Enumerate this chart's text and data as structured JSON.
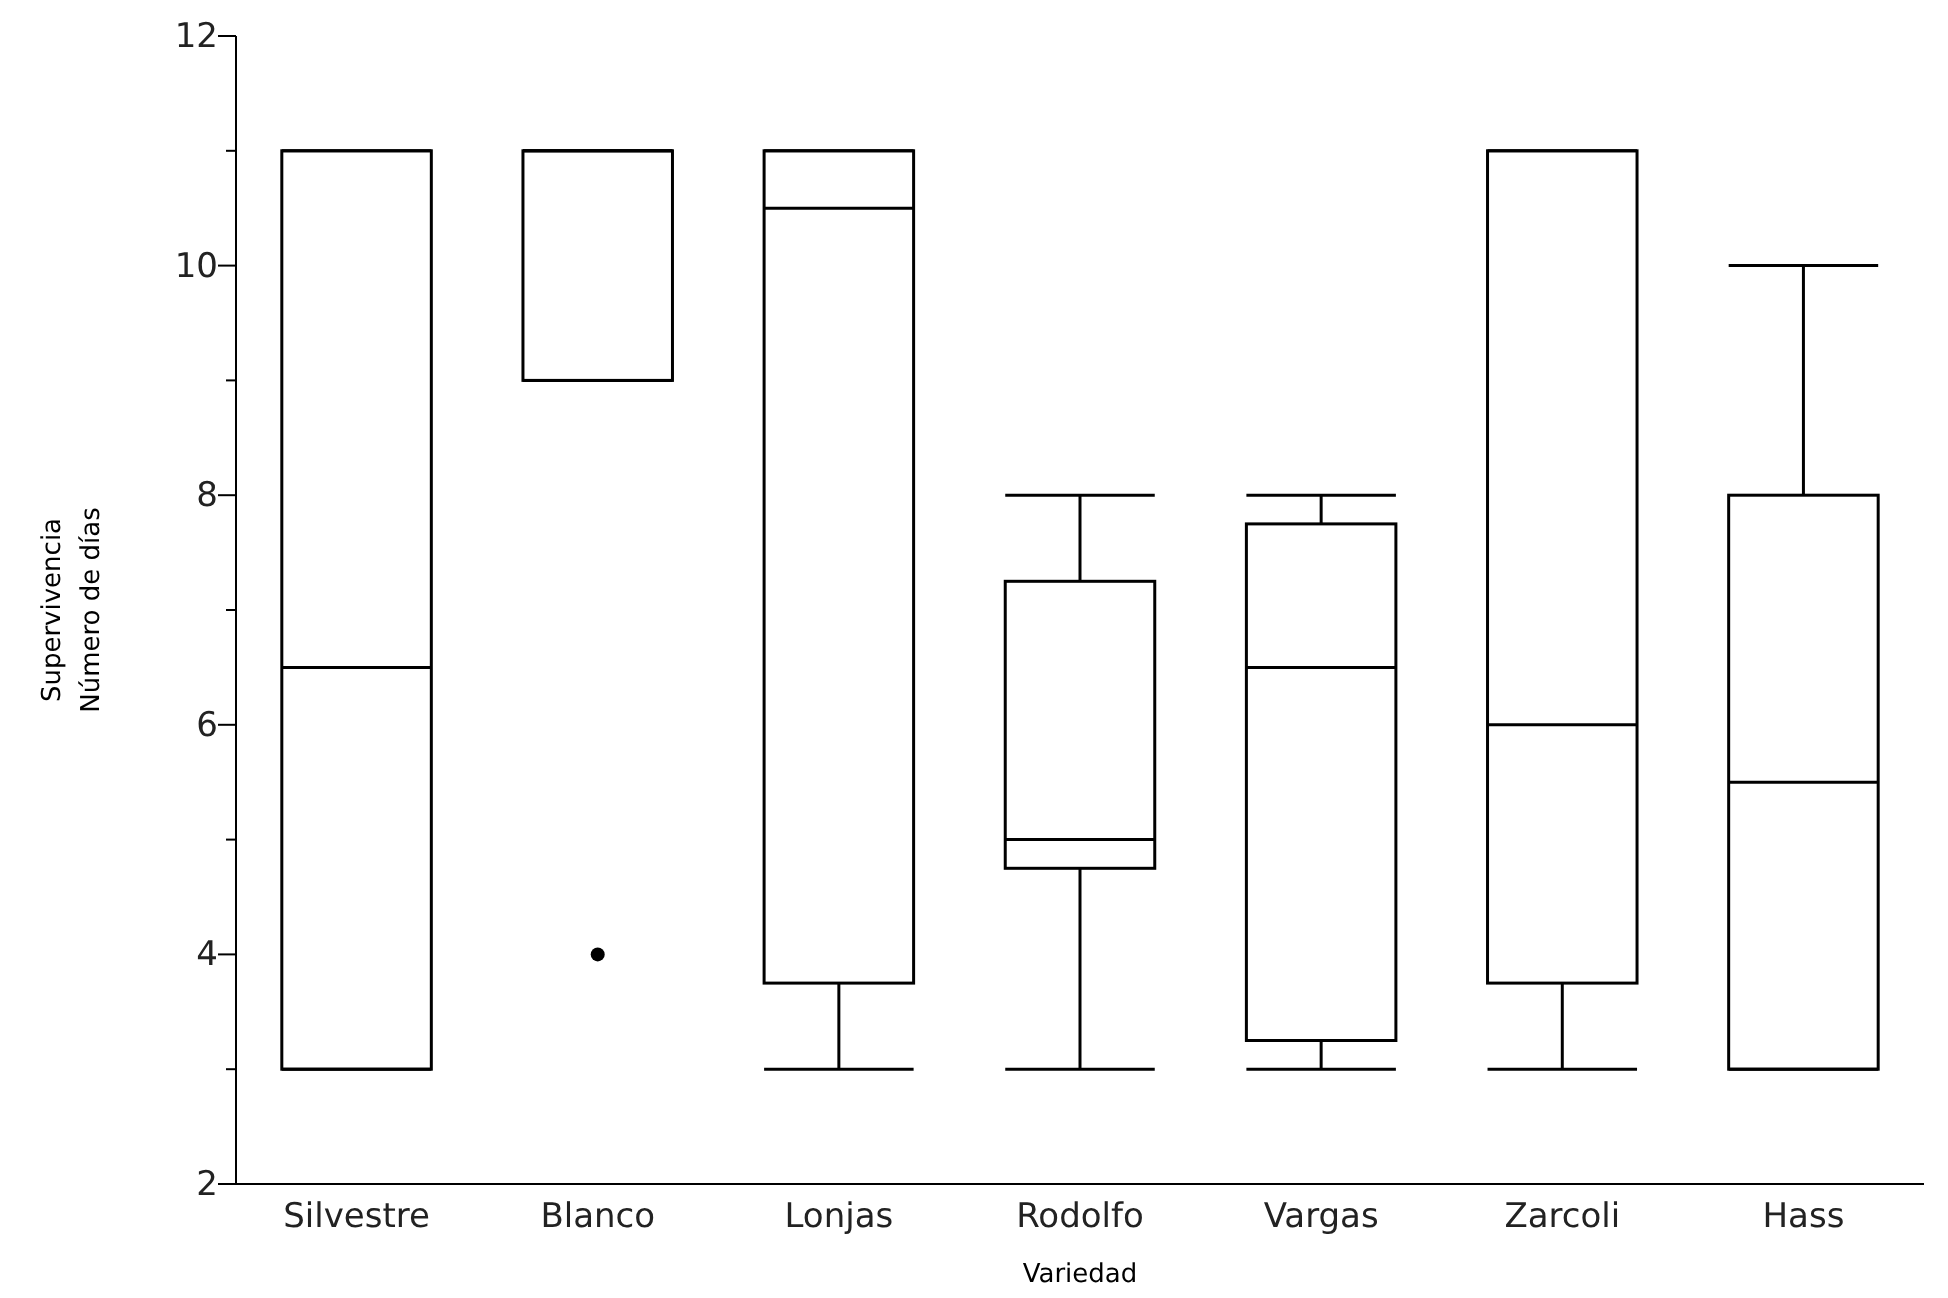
{
  "chart_data": {
    "type": "box",
    "xlabel": "Variedad",
    "ylabel": "Supervivencia\nNúmero de días",
    "categories": [
      "Silvestre",
      "Blanco",
      "Lonjas",
      "Rodolfo",
      "Vargas",
      "Zarcoli",
      "Hass"
    ],
    "boxes": [
      {
        "low": 3,
        "q1": 3,
        "median": 6.5,
        "q3": 11,
        "high": 11
      },
      {
        "low": 9,
        "q1": 9,
        "median": 11,
        "q3": 11,
        "high": 11,
        "outliers": [
          4
        ]
      },
      {
        "low": 3,
        "q1": 3.75,
        "median": 10.5,
        "q3": 11,
        "high": 11
      },
      {
        "low": 3,
        "q1": 4.75,
        "median": 5,
        "q3": 7.25,
        "high": 8
      },
      {
        "low": 3,
        "q1": 3.25,
        "median": 6.5,
        "q3": 7.75,
        "high": 8
      },
      {
        "low": 3,
        "q1": 3.75,
        "median": 6,
        "q3": 11,
        "high": 11
      },
      {
        "low": 3,
        "q1": 3,
        "median": 5.5,
        "q3": 8,
        "high": 10
      }
    ],
    "ylim": [
      2,
      12
    ],
    "yticks": [
      2,
      {
        "value": 3,
        "label": null
      },
      4,
      {
        "value": 5,
        "label": null
      },
      6,
      {
        "value": 7,
        "label": null
      },
      8,
      {
        "value": 9,
        "label": null
      },
      10,
      {
        "value": 11,
        "label": null
      },
      12
    ],
    "grid": false
  }
}
